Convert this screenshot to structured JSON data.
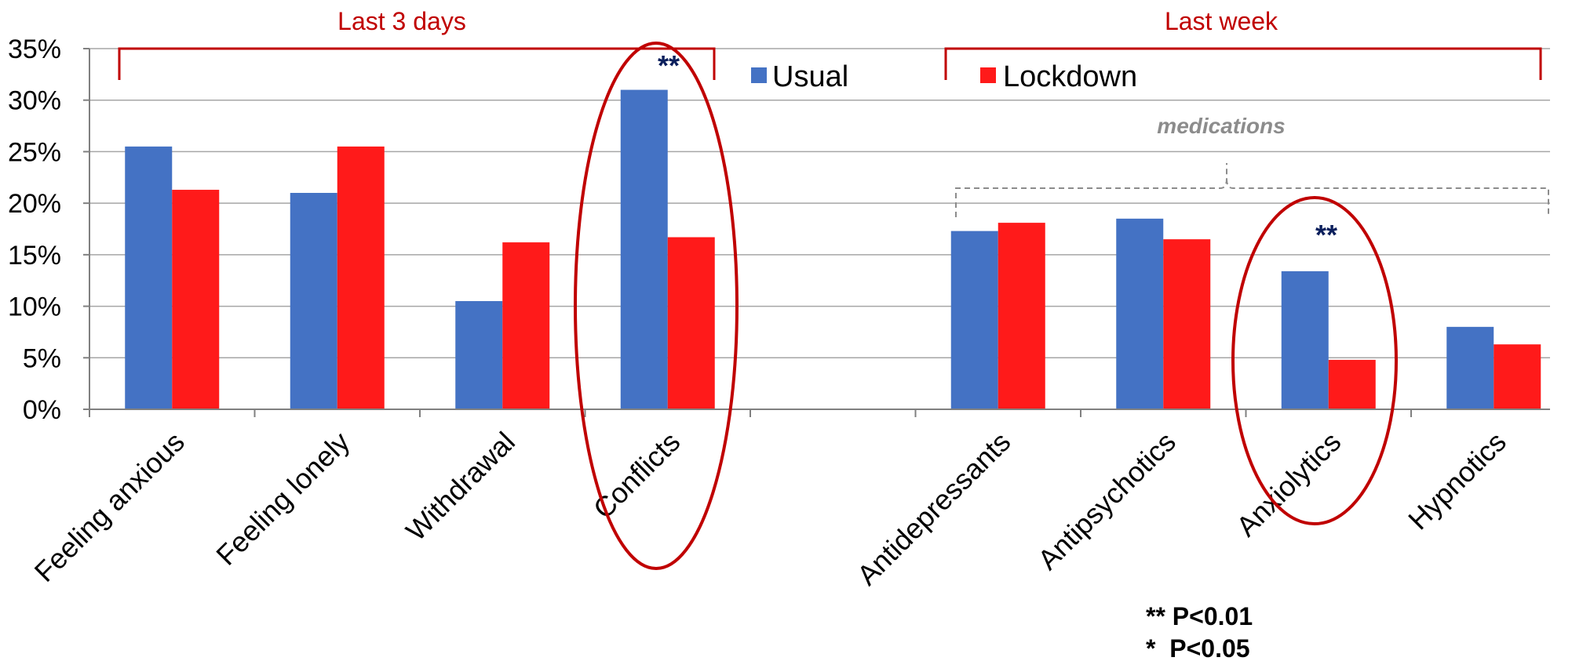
{
  "chart_data": {
    "type": "bar",
    "categories": [
      "Feeling anxious",
      "Feeling lonely",
      "Withdrawal",
      "Conflicts",
      "Antidepressants",
      "Antipsychotics",
      "Anxiolytics",
      "Hypnotics"
    ],
    "series": [
      {
        "name": "Usual",
        "color": "#4472c4",
        "values": [
          25.5,
          21.0,
          10.5,
          31.0,
          17.3,
          18.5,
          13.4,
          8.0
        ]
      },
      {
        "name": "Lockdown",
        "color": "#ff1a1a",
        "values": [
          21.3,
          25.5,
          16.2,
          16.7,
          18.1,
          16.5,
          4.8,
          6.3
        ]
      }
    ],
    "ylim": [
      0,
      35
    ],
    "yticks": [
      "0%",
      "5%",
      "10%",
      "15%",
      "20%",
      "25%",
      "30%",
      "35%"
    ],
    "grid": true,
    "legend": "top-center",
    "groups": [
      {
        "label": "Last 3 days",
        "categories": [
          "Feeling anxious",
          "Feeling lonely",
          "Withdrawal",
          "Conflicts"
        ]
      },
      {
        "label": "Last week",
        "categories": [
          "Antidepressants",
          "Antipsychotics",
          "Anxiolytics",
          "Hypnotics"
        ]
      }
    ],
    "medications_label": "medications",
    "highlighted": [
      {
        "category": "Conflicts",
        "mark": "**"
      },
      {
        "category": "Anxiolytics",
        "mark": "**"
      }
    ],
    "notes": [
      "** P<0.01",
      "*  P<0.05"
    ],
    "colors": {
      "accent": "#c00000",
      "significance": "#0b1f5c",
      "grid": "#a6a6a6"
    }
  }
}
